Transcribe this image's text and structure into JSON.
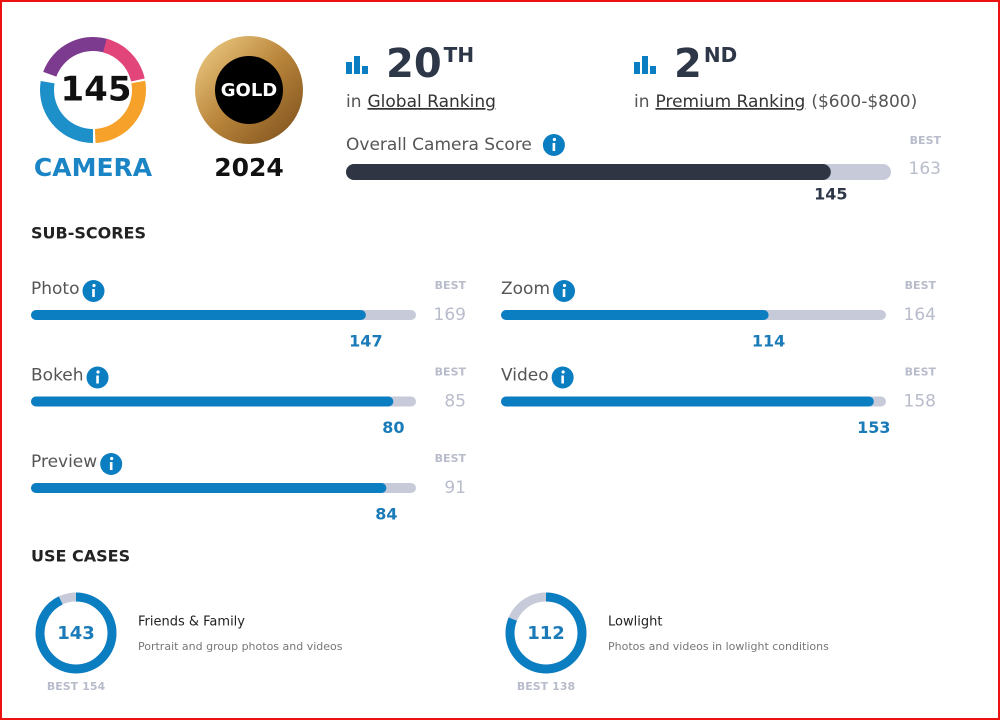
{
  "badge": {
    "score": 145,
    "label": "CAMERA"
  },
  "award": {
    "label": "GOLD",
    "year": "2024"
  },
  "rankings": [
    {
      "rank": 20,
      "suffix": "TH",
      "prefix": "in",
      "link": "Global Ranking"
    },
    {
      "rank": 2,
      "suffix": "ND",
      "prefix": "in",
      "link": "Premium Ranking",
      "note": "($600-$800)"
    }
  ],
  "overall": {
    "label": "Overall Camera Score",
    "score": 145,
    "best": 163
  },
  "best_label": "BEST",
  "sub_scores": {
    "title": "SUB-SCORES",
    "items": [
      {
        "name": "Photo",
        "score": 147,
        "best": 169
      },
      {
        "name": "Zoom",
        "score": 114,
        "best": 164
      },
      {
        "name": "Bokeh",
        "score": 80,
        "best": 85
      },
      {
        "name": "Video",
        "score": 153,
        "best": 158
      },
      {
        "name": "Preview",
        "score": 84,
        "best": 91
      }
    ]
  },
  "use_cases": {
    "title": "USE CASES",
    "items": [
      {
        "name": "Friends & Family",
        "description": "Portrait and group photos and videos",
        "score": 143,
        "best": 154
      },
      {
        "name": "Lowlight",
        "description": "Photos and videos in lowlight conditions",
        "score": 112,
        "best": 138
      }
    ]
  }
}
